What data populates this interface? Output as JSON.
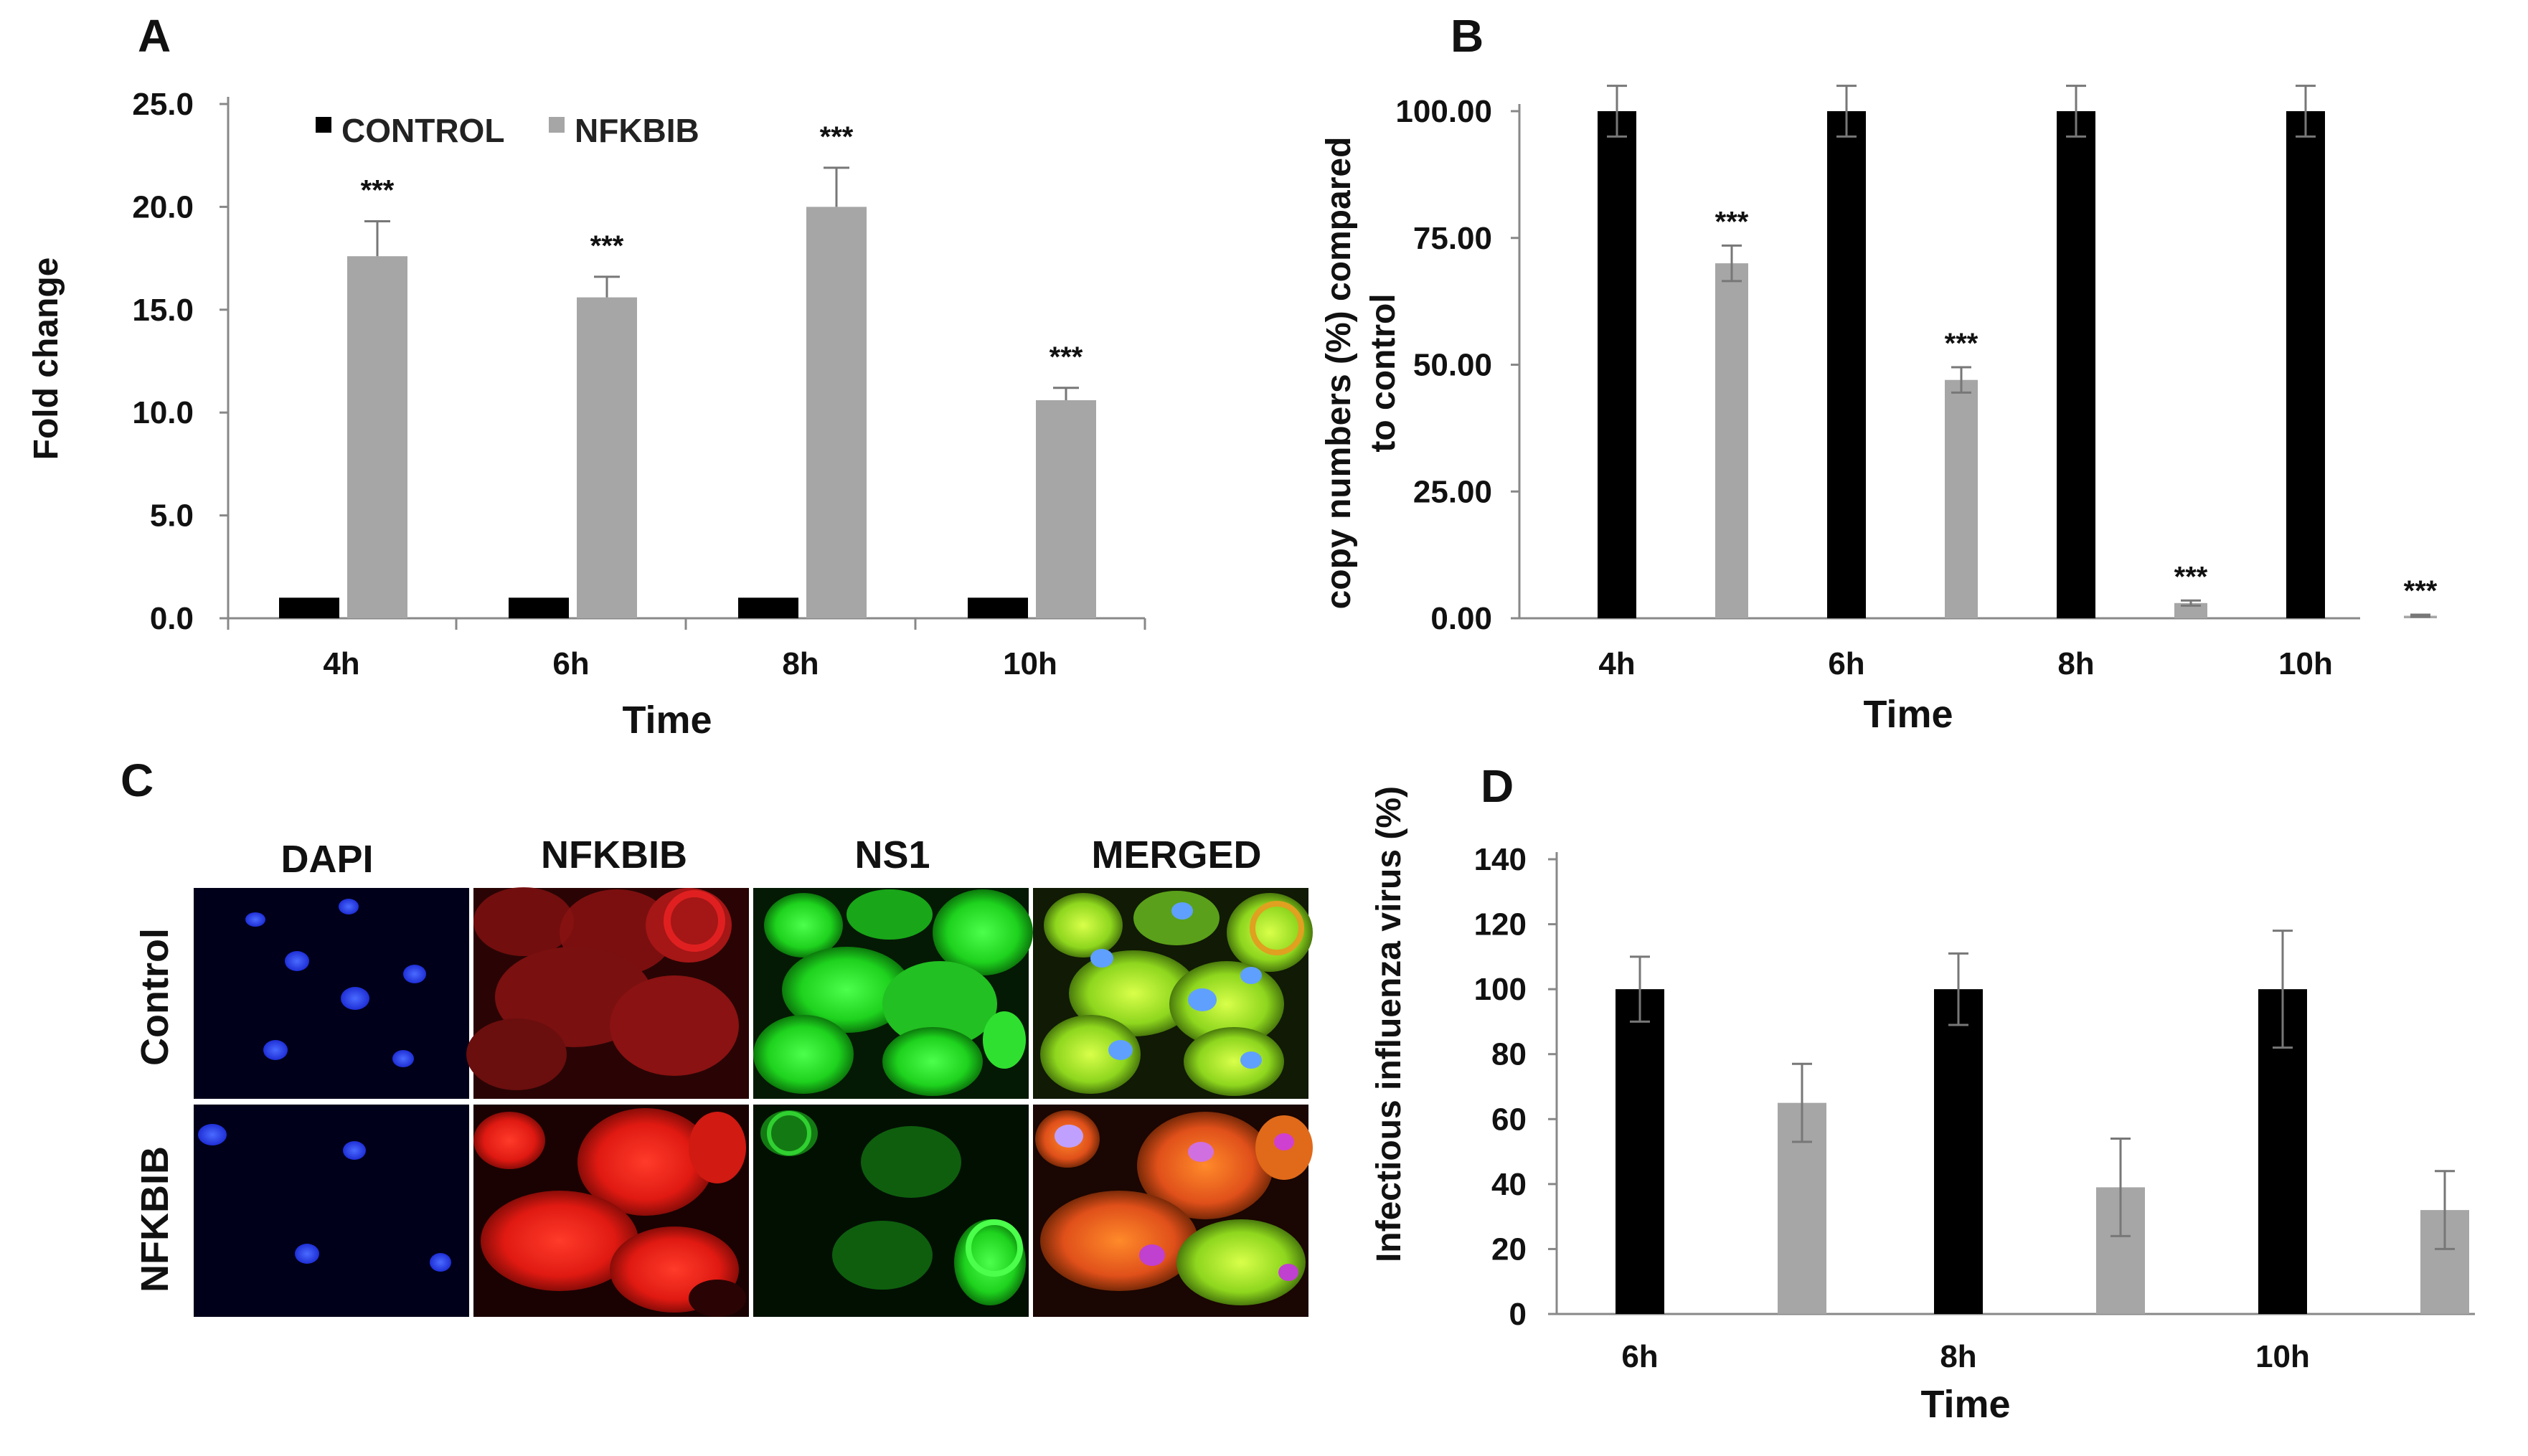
{
  "chart_data": [
    {
      "panel": "A",
      "type": "bar",
      "xlabel": "Time",
      "ylabel": "Fold change",
      "ylim": [
        0,
        25
      ],
      "yticks": [
        "0.0",
        "5.0",
        "10.0",
        "15.0",
        "20.0",
        "25.0"
      ],
      "categories": [
        "4h",
        "6h",
        "8h",
        "10h"
      ],
      "legend": [
        "CONTROL",
        "NFKBIB"
      ],
      "series": [
        {
          "name": "CONTROL",
          "color": "#000000",
          "values": [
            1.0,
            1.0,
            1.0,
            1.0
          ],
          "errors": [
            0,
            0,
            0,
            0
          ]
        },
        {
          "name": "NFKBIB",
          "color": "#a6a6a6",
          "values": [
            17.6,
            15.6,
            20.0,
            10.6
          ],
          "errors": [
            1.7,
            1.0,
            1.9,
            0.6
          ]
        }
      ],
      "annotations": [
        "***",
        "***",
        "***",
        "***"
      ]
    },
    {
      "panel": "B",
      "type": "bar",
      "xlabel": "Time",
      "ylabel": "copy numbers (%) compared to control",
      "ylabel_lines": [
        "copy numbers (%) compared",
        "to control"
      ],
      "ylim": [
        0,
        100
      ],
      "yticks": [
        "0.00",
        "25.00",
        "50.00",
        "75.00",
        "100.00"
      ],
      "categories": [
        "4h",
        "6h",
        "8h",
        "10h"
      ],
      "series": [
        {
          "name": "control",
          "color": "#000000",
          "values": [
            100,
            100,
            100,
            100
          ],
          "errors": [
            5,
            5,
            5,
            5
          ]
        },
        {
          "name": "NFKBIB",
          "color": "#a6a6a6",
          "values": [
            70,
            47,
            3,
            0.5
          ],
          "errors": [
            3.5,
            2.5,
            0.5,
            0.2
          ]
        }
      ],
      "annotations": [
        "***",
        "***",
        "***",
        "***"
      ]
    },
    {
      "panel": "D",
      "type": "bar",
      "xlabel": "Time",
      "ylabel": "Infectious influenza virus (%)",
      "ylim": [
        0,
        140
      ],
      "yticks": [
        "0",
        "20",
        "40",
        "60",
        "80",
        "100",
        "120",
        "140"
      ],
      "categories": [
        "6h",
        "8h",
        "10h"
      ],
      "series": [
        {
          "name": "control",
          "color": "#000000",
          "values": [
            100,
            100,
            100
          ],
          "errors": [
            10,
            11,
            18
          ]
        },
        {
          "name": "NFKBIB",
          "color": "#a6a6a6",
          "values": [
            65,
            39,
            32
          ],
          "errors": [
            12,
            15,
            12
          ]
        }
      ]
    }
  ],
  "panel_c": {
    "letter": "C",
    "columns": [
      "DAPI",
      "NFKBIB",
      "NS1",
      "MERGED"
    ],
    "rows": [
      "Control",
      "NFKBIB"
    ]
  },
  "labels": {
    "a": "A",
    "b": "B",
    "c": "C",
    "d": "D"
  }
}
